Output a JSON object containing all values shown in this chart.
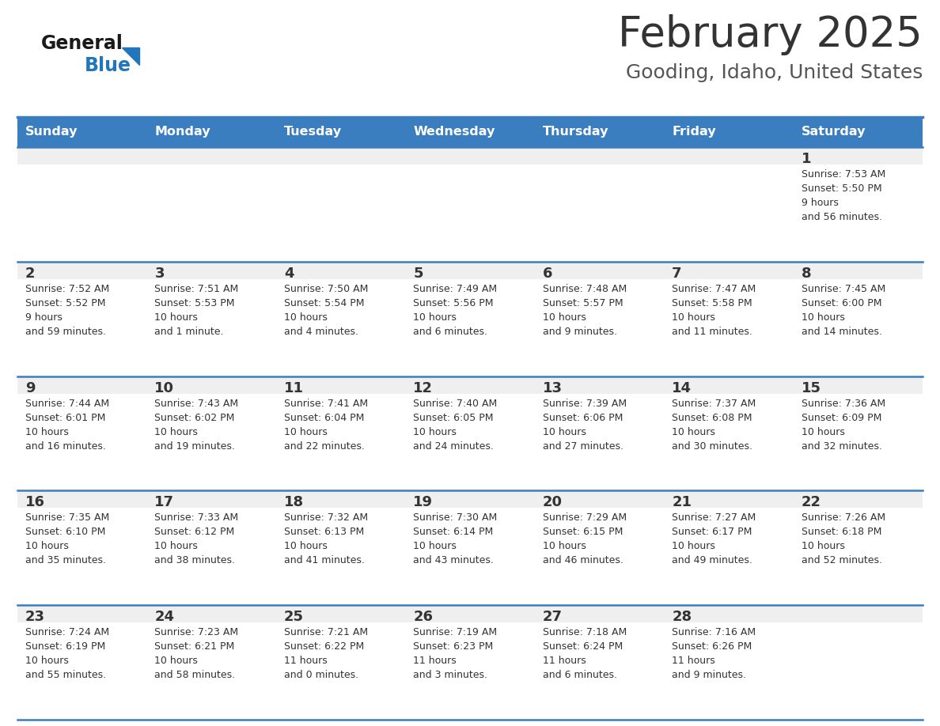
{
  "title": "February 2025",
  "subtitle": "Gooding, Idaho, United States",
  "days_of_week": [
    "Sunday",
    "Monday",
    "Tuesday",
    "Wednesday",
    "Thursday",
    "Friday",
    "Saturday"
  ],
  "header_bg": "#3a7ebf",
  "header_text_color": "#ffffff",
  "cell_bg_light": "#efefef",
  "cell_bg_white": "#ffffff",
  "day_number_color": "#333333",
  "cell_text_color": "#333333",
  "divider_color": "#3a7ebf",
  "title_color": "#333333",
  "subtitle_color": "#555555",
  "logo_general_color": "#1a1a1a",
  "logo_blue_color": "#2277bb",
  "calendar_data": [
    [
      {
        "day": null,
        "sunrise": null,
        "sunset": null,
        "daylight": null
      },
      {
        "day": null,
        "sunrise": null,
        "sunset": null,
        "daylight": null
      },
      {
        "day": null,
        "sunrise": null,
        "sunset": null,
        "daylight": null
      },
      {
        "day": null,
        "sunrise": null,
        "sunset": null,
        "daylight": null
      },
      {
        "day": null,
        "sunrise": null,
        "sunset": null,
        "daylight": null
      },
      {
        "day": null,
        "sunrise": null,
        "sunset": null,
        "daylight": null
      },
      {
        "day": 1,
        "sunrise": "7:53 AM",
        "sunset": "5:50 PM",
        "daylight": "9 hours\nand 56 minutes."
      }
    ],
    [
      {
        "day": 2,
        "sunrise": "7:52 AM",
        "sunset": "5:52 PM",
        "daylight": "9 hours\nand 59 minutes."
      },
      {
        "day": 3,
        "sunrise": "7:51 AM",
        "sunset": "5:53 PM",
        "daylight": "10 hours\nand 1 minute."
      },
      {
        "day": 4,
        "sunrise": "7:50 AM",
        "sunset": "5:54 PM",
        "daylight": "10 hours\nand 4 minutes."
      },
      {
        "day": 5,
        "sunrise": "7:49 AM",
        "sunset": "5:56 PM",
        "daylight": "10 hours\nand 6 minutes."
      },
      {
        "day": 6,
        "sunrise": "7:48 AM",
        "sunset": "5:57 PM",
        "daylight": "10 hours\nand 9 minutes."
      },
      {
        "day": 7,
        "sunrise": "7:47 AM",
        "sunset": "5:58 PM",
        "daylight": "10 hours\nand 11 minutes."
      },
      {
        "day": 8,
        "sunrise": "7:45 AM",
        "sunset": "6:00 PM",
        "daylight": "10 hours\nand 14 minutes."
      }
    ],
    [
      {
        "day": 9,
        "sunrise": "7:44 AM",
        "sunset": "6:01 PM",
        "daylight": "10 hours\nand 16 minutes."
      },
      {
        "day": 10,
        "sunrise": "7:43 AM",
        "sunset": "6:02 PM",
        "daylight": "10 hours\nand 19 minutes."
      },
      {
        "day": 11,
        "sunrise": "7:41 AM",
        "sunset": "6:04 PM",
        "daylight": "10 hours\nand 22 minutes."
      },
      {
        "day": 12,
        "sunrise": "7:40 AM",
        "sunset": "6:05 PM",
        "daylight": "10 hours\nand 24 minutes."
      },
      {
        "day": 13,
        "sunrise": "7:39 AM",
        "sunset": "6:06 PM",
        "daylight": "10 hours\nand 27 minutes."
      },
      {
        "day": 14,
        "sunrise": "7:37 AM",
        "sunset": "6:08 PM",
        "daylight": "10 hours\nand 30 minutes."
      },
      {
        "day": 15,
        "sunrise": "7:36 AM",
        "sunset": "6:09 PM",
        "daylight": "10 hours\nand 32 minutes."
      }
    ],
    [
      {
        "day": 16,
        "sunrise": "7:35 AM",
        "sunset": "6:10 PM",
        "daylight": "10 hours\nand 35 minutes."
      },
      {
        "day": 17,
        "sunrise": "7:33 AM",
        "sunset": "6:12 PM",
        "daylight": "10 hours\nand 38 minutes."
      },
      {
        "day": 18,
        "sunrise": "7:32 AM",
        "sunset": "6:13 PM",
        "daylight": "10 hours\nand 41 minutes."
      },
      {
        "day": 19,
        "sunrise": "7:30 AM",
        "sunset": "6:14 PM",
        "daylight": "10 hours\nand 43 minutes."
      },
      {
        "day": 20,
        "sunrise": "7:29 AM",
        "sunset": "6:15 PM",
        "daylight": "10 hours\nand 46 minutes."
      },
      {
        "day": 21,
        "sunrise": "7:27 AM",
        "sunset": "6:17 PM",
        "daylight": "10 hours\nand 49 minutes."
      },
      {
        "day": 22,
        "sunrise": "7:26 AM",
        "sunset": "6:18 PM",
        "daylight": "10 hours\nand 52 minutes."
      }
    ],
    [
      {
        "day": 23,
        "sunrise": "7:24 AM",
        "sunset": "6:19 PM",
        "daylight": "10 hours\nand 55 minutes."
      },
      {
        "day": 24,
        "sunrise": "7:23 AM",
        "sunset": "6:21 PM",
        "daylight": "10 hours\nand 58 minutes."
      },
      {
        "day": 25,
        "sunrise": "7:21 AM",
        "sunset": "6:22 PM",
        "daylight": "11 hours\nand 0 minutes."
      },
      {
        "day": 26,
        "sunrise": "7:19 AM",
        "sunset": "6:23 PM",
        "daylight": "11 hours\nand 3 minutes."
      },
      {
        "day": 27,
        "sunrise": "7:18 AM",
        "sunset": "6:24 PM",
        "daylight": "11 hours\nand 6 minutes."
      },
      {
        "day": 28,
        "sunrise": "7:16 AM",
        "sunset": "6:26 PM",
        "daylight": "11 hours\nand 9 minutes."
      },
      {
        "day": null,
        "sunrise": null,
        "sunset": null,
        "daylight": null
      }
    ]
  ]
}
